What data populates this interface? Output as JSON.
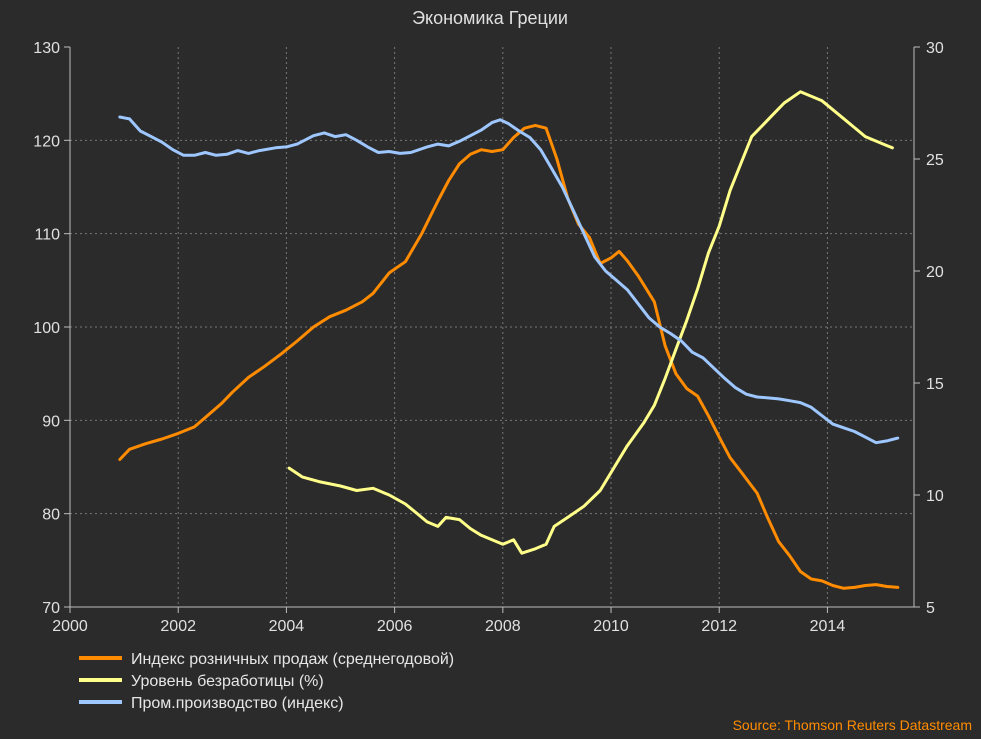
{
  "chart_data": {
    "type": "line",
    "title": "Экономика Греции",
    "source": "Source: Thomson Reuters Datastream",
    "x_ticks": [
      "2000",
      "2002",
      "2004",
      "2006",
      "2008",
      "2010",
      "2012",
      "2014"
    ],
    "xlim": [
      2000,
      2015.6
    ],
    "y_left": {
      "ticks": [
        "70",
        "80",
        "90",
        "100",
        "110",
        "120",
        "130"
      ],
      "lim": [
        70,
        130
      ]
    },
    "y_right": {
      "ticks": [
        "5",
        "10",
        "15",
        "20",
        "25",
        "30"
      ],
      "lim": [
        5,
        30
      ]
    },
    "grid": true,
    "legend_position": "bottom-left",
    "series": [
      {
        "name": "Индекс розничных продаж (среднегодовой)",
        "color": "#ff8c00",
        "axis": "left",
        "points": [
          [
            2000.92,
            85.8
          ],
          [
            2001.1,
            86.9
          ],
          [
            2001.4,
            87.5
          ],
          [
            2001.7,
            88.0
          ],
          [
            2002.0,
            88.6
          ],
          [
            2002.3,
            89.3
          ],
          [
            2002.5,
            90.3
          ],
          [
            2002.8,
            91.8
          ],
          [
            2003.0,
            93.0
          ],
          [
            2003.3,
            94.6
          ],
          [
            2003.6,
            95.8
          ],
          [
            2003.9,
            97.1
          ],
          [
            2004.2,
            98.5
          ],
          [
            2004.5,
            100.0
          ],
          [
            2004.8,
            101.1
          ],
          [
            2005.1,
            101.8
          ],
          [
            2005.4,
            102.7
          ],
          [
            2005.6,
            103.6
          ],
          [
            2005.9,
            105.8
          ],
          [
            2006.2,
            107.0
          ],
          [
            2006.5,
            110.0
          ],
          [
            2006.8,
            113.5
          ],
          [
            2007.0,
            115.7
          ],
          [
            2007.2,
            117.5
          ],
          [
            2007.4,
            118.5
          ],
          [
            2007.6,
            119.0
          ],
          [
            2007.8,
            118.8
          ],
          [
            2008.0,
            119.0
          ],
          [
            2008.2,
            120.3
          ],
          [
            2008.4,
            121.3
          ],
          [
            2008.6,
            121.6
          ],
          [
            2008.8,
            121.3
          ],
          [
            2009.0,
            118.0
          ],
          [
            2009.2,
            113.8
          ],
          [
            2009.4,
            111.0
          ],
          [
            2009.6,
            109.6
          ],
          [
            2009.8,
            106.8
          ],
          [
            2010.0,
            107.4
          ],
          [
            2010.15,
            108.1
          ],
          [
            2010.3,
            107.1
          ],
          [
            2010.5,
            105.5
          ],
          [
            2010.8,
            102.7
          ],
          [
            2011.0,
            98.0
          ],
          [
            2011.2,
            95.0
          ],
          [
            2011.4,
            93.4
          ],
          [
            2011.6,
            92.6
          ],
          [
            2011.8,
            90.5
          ],
          [
            2012.0,
            88.2
          ],
          [
            2012.2,
            86.0
          ],
          [
            2012.4,
            84.5
          ],
          [
            2012.7,
            82.2
          ],
          [
            2012.9,
            79.5
          ],
          [
            2013.1,
            77.0
          ],
          [
            2013.3,
            75.5
          ],
          [
            2013.5,
            73.8
          ],
          [
            2013.7,
            73.0
          ],
          [
            2013.9,
            72.8
          ],
          [
            2014.1,
            72.3
          ],
          [
            2014.3,
            72.0
          ],
          [
            2014.5,
            72.1
          ],
          [
            2014.7,
            72.3
          ],
          [
            2014.9,
            72.4
          ],
          [
            2015.1,
            72.2
          ],
          [
            2015.3,
            72.1
          ]
        ]
      },
      {
        "name": "Уровень безработицы (%)",
        "color": "#ffff8a",
        "axis": "right",
        "points": [
          [
            2004.05,
            11.2
          ],
          [
            2004.3,
            10.8
          ],
          [
            2004.6,
            10.6
          ],
          [
            2005.0,
            10.4
          ],
          [
            2005.3,
            10.2
          ],
          [
            2005.6,
            10.3
          ],
          [
            2005.9,
            10.0
          ],
          [
            2006.2,
            9.6
          ],
          [
            2006.4,
            9.2
          ],
          [
            2006.6,
            8.8
          ],
          [
            2006.8,
            8.6
          ],
          [
            2006.95,
            9.0
          ],
          [
            2007.2,
            8.9
          ],
          [
            2007.4,
            8.5
          ],
          [
            2007.6,
            8.2
          ],
          [
            2007.8,
            8.0
          ],
          [
            2008.0,
            7.8
          ],
          [
            2008.2,
            8.0
          ],
          [
            2008.35,
            7.4
          ],
          [
            2008.6,
            7.6
          ],
          [
            2008.8,
            7.8
          ],
          [
            2008.95,
            8.6
          ],
          [
            2009.2,
            9.0
          ],
          [
            2009.5,
            9.5
          ],
          [
            2009.8,
            10.2
          ],
          [
            2010.0,
            11.0
          ],
          [
            2010.3,
            12.2
          ],
          [
            2010.6,
            13.2
          ],
          [
            2010.8,
            14.0
          ],
          [
            2011.0,
            15.2
          ],
          [
            2011.2,
            16.5
          ],
          [
            2011.4,
            17.8
          ],
          [
            2011.6,
            19.2
          ],
          [
            2011.8,
            20.8
          ],
          [
            2012.0,
            22.0
          ],
          [
            2012.2,
            23.6
          ],
          [
            2012.4,
            24.8
          ],
          [
            2012.6,
            26.0
          ],
          [
            2012.8,
            26.5
          ],
          [
            2013.0,
            27.0
          ],
          [
            2013.2,
            27.5
          ],
          [
            2013.5,
            28.0
          ],
          [
            2013.7,
            27.8
          ],
          [
            2013.9,
            27.6
          ],
          [
            2014.1,
            27.2
          ],
          [
            2014.3,
            26.8
          ],
          [
            2014.5,
            26.4
          ],
          [
            2014.7,
            26.0
          ],
          [
            2014.9,
            25.8
          ],
          [
            2015.1,
            25.6
          ],
          [
            2015.2,
            25.5
          ]
        ]
      },
      {
        "name": "Пром.производство (индекс)",
        "color": "#9ec7ff",
        "axis": "left",
        "points": [
          [
            2000.92,
            122.5
          ],
          [
            2001.1,
            122.3
          ],
          [
            2001.3,
            121.0
          ],
          [
            2001.5,
            120.4
          ],
          [
            2001.7,
            119.8
          ],
          [
            2001.9,
            119.0
          ],
          [
            2002.1,
            118.4
          ],
          [
            2002.3,
            118.4
          ],
          [
            2002.5,
            118.7
          ],
          [
            2002.7,
            118.4
          ],
          [
            2002.9,
            118.5
          ],
          [
            2003.1,
            118.9
          ],
          [
            2003.3,
            118.6
          ],
          [
            2003.5,
            118.9
          ],
          [
            2003.8,
            119.2
          ],
          [
            2004.0,
            119.3
          ],
          [
            2004.2,
            119.6
          ],
          [
            2004.5,
            120.5
          ],
          [
            2004.7,
            120.8
          ],
          [
            2004.9,
            120.4
          ],
          [
            2005.1,
            120.6
          ],
          [
            2005.3,
            120.0
          ],
          [
            2005.5,
            119.3
          ],
          [
            2005.7,
            118.7
          ],
          [
            2005.9,
            118.8
          ],
          [
            2006.1,
            118.6
          ],
          [
            2006.3,
            118.7
          ],
          [
            2006.6,
            119.3
          ],
          [
            2006.8,
            119.6
          ],
          [
            2007.0,
            119.4
          ],
          [
            2007.2,
            119.9
          ],
          [
            2007.4,
            120.5
          ],
          [
            2007.6,
            121.1
          ],
          [
            2007.8,
            121.9
          ],
          [
            2007.95,
            122.2
          ],
          [
            2008.1,
            121.8
          ],
          [
            2008.3,
            121.0
          ],
          [
            2008.5,
            120.3
          ],
          [
            2008.7,
            119.0
          ],
          [
            2008.9,
            117.0
          ],
          [
            2009.1,
            115.0
          ],
          [
            2009.3,
            112.5
          ],
          [
            2009.5,
            110.0
          ],
          [
            2009.7,
            107.5
          ],
          [
            2009.9,
            106.0
          ],
          [
            2010.1,
            105.0
          ],
          [
            2010.3,
            104.0
          ],
          [
            2010.5,
            102.5
          ],
          [
            2010.7,
            101.0
          ],
          [
            2010.9,
            100.0
          ],
          [
            2011.1,
            99.3
          ],
          [
            2011.3,
            98.5
          ],
          [
            2011.5,
            97.3
          ],
          [
            2011.7,
            96.7
          ],
          [
            2011.9,
            95.6
          ],
          [
            2012.1,
            94.5
          ],
          [
            2012.3,
            93.5
          ],
          [
            2012.5,
            92.8
          ],
          [
            2012.7,
            92.5
          ],
          [
            2012.9,
            92.4
          ],
          [
            2013.1,
            92.3
          ],
          [
            2013.3,
            92.1
          ],
          [
            2013.5,
            91.9
          ],
          [
            2013.7,
            91.4
          ],
          [
            2013.9,
            90.5
          ],
          [
            2014.1,
            89.6
          ],
          [
            2014.3,
            89.2
          ],
          [
            2014.5,
            88.8
          ],
          [
            2014.7,
            88.2
          ],
          [
            2014.9,
            87.6
          ],
          [
            2015.1,
            87.8
          ],
          [
            2015.3,
            88.1
          ]
        ]
      }
    ]
  }
}
